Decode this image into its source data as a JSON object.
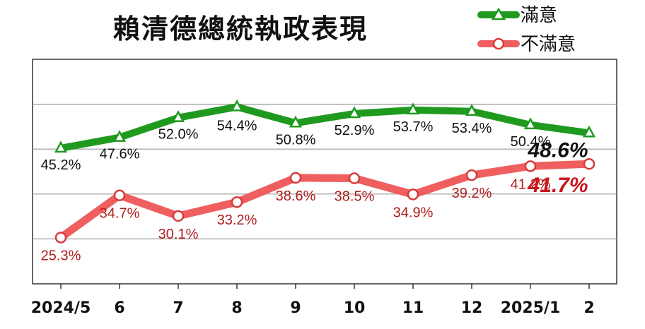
{
  "chart_data": {
    "type": "line",
    "title": "賴清德總統執政表現",
    "categories": [
      "2024/5",
      "6",
      "7",
      "8",
      "9",
      "10",
      "11",
      "12",
      "2025/1",
      "2"
    ],
    "series": [
      {
        "name": "滿意",
        "color": "#1f9a1f",
        "marker": "triangle",
        "values": [
          45.2,
          47.6,
          52.0,
          54.4,
          50.8,
          52.9,
          53.7,
          53.4,
          50.4,
          48.6
        ],
        "labels": [
          "45.2%",
          "47.6%",
          "52.0%",
          "54.4%",
          "50.8%",
          "52.9%",
          "53.7%",
          "53.4%",
          "50.4%",
          "48.6%"
        ]
      },
      {
        "name": "不滿意",
        "color": "#ef5f5f",
        "marker": "circle",
        "values": [
          25.3,
          34.7,
          30.1,
          33.2,
          38.6,
          38.5,
          34.9,
          39.2,
          41.2,
          41.7
        ],
        "labels": [
          "25.3%",
          "34.7%",
          "30.1%",
          "33.2%",
          "38.6%",
          "38.5%",
          "34.9%",
          "39.2%",
          "41.2%",
          "41.7%"
        ]
      }
    ],
    "legend_position": "top-right",
    "grid": true,
    "ylim": [
      15,
      65
    ]
  }
}
